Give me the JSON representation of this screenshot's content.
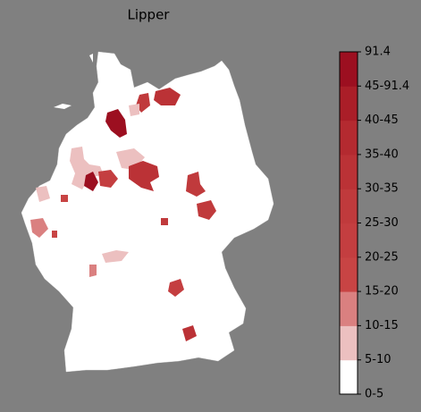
{
  "title": "Lipper",
  "colorbar": {
    "labels": [
      "0-5",
      "5-10",
      "10-15",
      "15-20",
      "20-25",
      "25-30",
      "30-35",
      "35-40",
      "40-45",
      "45-91.4",
      "91.4"
    ],
    "colors": [
      "#ffffff",
      "#ecc0c0",
      "#da8080",
      "#c84444",
      "#c43e40",
      "#c03a3c",
      "#bb3236",
      "#b42a30",
      "#aa1e28",
      "#9c0f20"
    ]
  }
}
